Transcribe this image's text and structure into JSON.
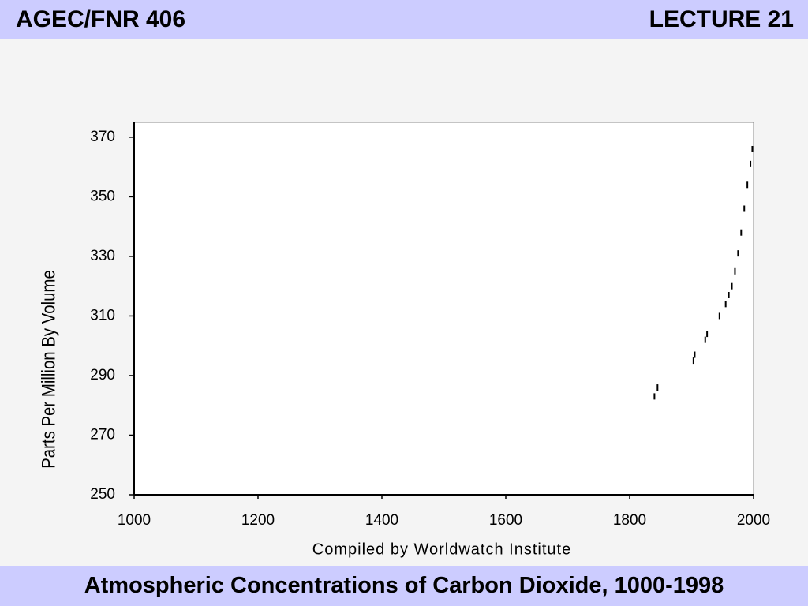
{
  "header": {
    "left": "AGEC/FNR 406",
    "right": "LECTURE 21"
  },
  "footer": {
    "title": "Atmospheric Concentrations of Carbon Dioxide, 1000-1998"
  },
  "chart_data": {
    "type": "scatter",
    "x_label": "Compiled by Worldwatch Institute",
    "y_label": "Parts Per Million By Volume",
    "x": [
      1840,
      1845,
      1903,
      1905,
      1922,
      1925,
      1945,
      1955,
      1960,
      1965,
      1970,
      1975,
      1980,
      1985,
      1990,
      1995,
      1998
    ],
    "values": [
      283,
      286,
      295,
      297,
      302,
      304,
      310,
      314,
      317,
      320,
      325,
      331,
      338,
      346,
      354,
      361,
      366
    ],
    "color": "#000000",
    "xlim": [
      1000,
      2000
    ],
    "xticks": [
      1000,
      1200,
      1400,
      1600,
      1800,
      2000
    ],
    "ylim": [
      250,
      375
    ],
    "yticks": [
      250,
      270,
      290,
      310,
      330,
      350,
      370
    ]
  }
}
